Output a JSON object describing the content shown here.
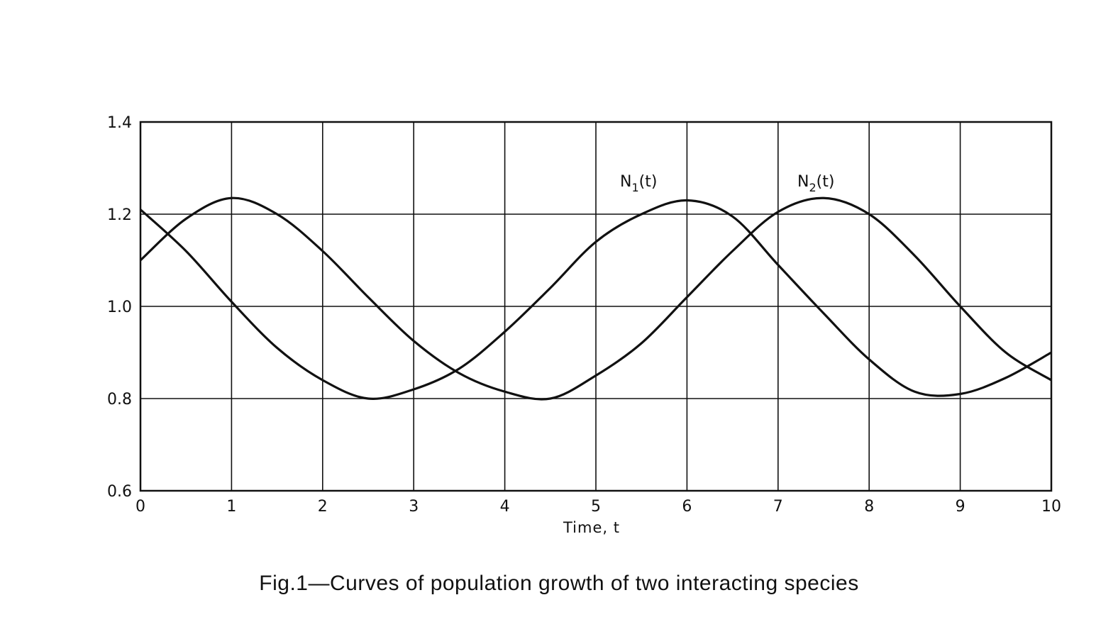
{
  "chart_data": {
    "type": "line",
    "title": "",
    "caption": "Fig.1—Curves of population growth of two interacting species",
    "xlabel": "Time, t",
    "ylabel": "",
    "xlim": [
      0,
      10
    ],
    "ylim": [
      0.6,
      1.4
    ],
    "xticks": [
      0,
      1,
      2,
      3,
      4,
      5,
      6,
      7,
      8,
      9,
      10
    ],
    "yticks": [
      "0.6",
      "0.8",
      "1.0",
      "1.2",
      "1.4"
    ],
    "grid": true,
    "series": [
      {
        "name": "N1(t)",
        "label_main": "N",
        "label_sub": "1",
        "label_tail": "(t)",
        "x": [
          0,
          0.5,
          1,
          1.5,
          2,
          2.5,
          3,
          3.5,
          4,
          4.5,
          5,
          5.5,
          6,
          6.5,
          7,
          7.5,
          8,
          8.5,
          9,
          9.5,
          10
        ],
        "y": [
          1.1,
          1.19,
          1.235,
          1.2,
          1.12,
          1.02,
          0.925,
          0.855,
          0.815,
          0.8,
          0.85,
          0.92,
          1.02,
          1.12,
          1.205,
          1.235,
          1.2,
          1.11,
          1.0,
          0.9,
          0.84
        ]
      },
      {
        "name": "N2(t)",
        "label_main": "N",
        "label_sub": "2",
        "label_tail": "(t)",
        "x": [
          0,
          0.5,
          1,
          1.5,
          2,
          2.5,
          3,
          3.5,
          4,
          4.5,
          5,
          5.5,
          6,
          6.5,
          7,
          7.5,
          8,
          8.5,
          9,
          9.5,
          10
        ],
        "y": [
          1.21,
          1.12,
          1.01,
          0.91,
          0.84,
          0.8,
          0.82,
          0.865,
          0.945,
          1.04,
          1.14,
          1.2,
          1.23,
          1.195,
          1.09,
          0.985,
          0.885,
          0.815,
          0.81,
          0.845,
          0.9
        ]
      }
    ]
  }
}
